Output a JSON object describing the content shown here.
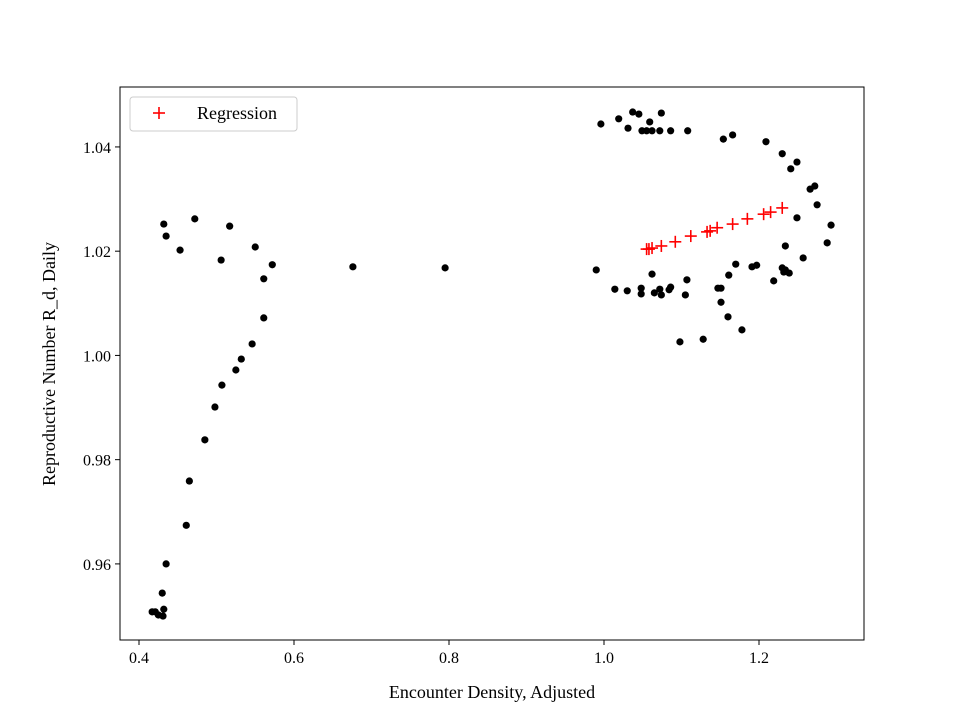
{
  "chart_data": {
    "type": "scatter",
    "title": "",
    "xlabel": "Encounter Density, Adjusted",
    "ylabel": "Reproductive Number R_d, Daily",
    "xlim": [
      0.3755,
      1.3355
    ],
    "ylim": [
      0.9454,
      1.0515
    ],
    "xticks": [
      0.4,
      0.6,
      0.8,
      1.0,
      1.2
    ],
    "xtick_labels": [
      "0.4",
      "0.6",
      "0.8",
      "1.0",
      "1.2"
    ],
    "yticks": [
      0.96,
      0.98,
      1.0,
      1.02,
      1.04
    ],
    "ytick_labels": [
      "0.96",
      "0.98",
      "1.00",
      "1.02",
      "1.04"
    ],
    "grid": false,
    "legend_placement": "top-left",
    "series": [
      {
        "marker": "dot",
        "color": "#000000",
        "points": [
          [
            0.432,
            1.0252
          ],
          [
            0.435,
            1.0229
          ],
          [
            0.453,
            1.0202
          ],
          [
            0.472,
            1.0262
          ],
          [
            0.517,
            1.0248
          ],
          [
            0.506,
            1.0183
          ],
          [
            0.55,
            1.0208
          ],
          [
            0.561,
            1.0147
          ],
          [
            0.572,
            1.0174
          ],
          [
            0.561,
            1.0072
          ],
          [
            0.546,
            1.0022
          ],
          [
            0.532,
            0.9993
          ],
          [
            0.525,
            0.9972
          ],
          [
            0.507,
            0.9943
          ],
          [
            0.498,
            0.9901
          ],
          [
            0.485,
            0.9838
          ],
          [
            0.465,
            0.9759
          ],
          [
            0.461,
            0.9674
          ],
          [
            0.435,
            0.96
          ],
          [
            0.43,
            0.9544
          ],
          [
            0.432,
            0.9513
          ],
          [
            0.421,
            0.9508
          ],
          [
            0.425,
            0.9502
          ],
          [
            0.431,
            0.95
          ],
          [
            0.417,
            0.9508
          ],
          [
            0.676,
            1.017
          ],
          [
            0.795,
            1.0168
          ],
          [
            0.996,
            1.0444
          ],
          [
            1.019,
            1.0454
          ],
          [
            1.037,
            1.0467
          ],
          [
            1.045,
            1.0463
          ],
          [
            1.074,
            1.0465
          ],
          [
            1.059,
            1.0448
          ],
          [
            1.031,
            1.0436
          ],
          [
            1.049,
            1.0431
          ],
          [
            1.055,
            1.0431
          ],
          [
            1.062,
            1.0431
          ],
          [
            1.072,
            1.0431
          ],
          [
            1.086,
            1.0431
          ],
          [
            1.108,
            1.0431
          ],
          [
            1.154,
            1.0415
          ],
          [
            1.166,
            1.0423
          ],
          [
            1.209,
            1.041
          ],
          [
            1.23,
            1.0387
          ],
          [
            1.249,
            1.0371
          ],
          [
            1.241,
            1.0358
          ],
          [
            1.272,
            1.0325
          ],
          [
            1.266,
            1.0319
          ],
          [
            1.275,
            1.0289
          ],
          [
            1.249,
            1.0264
          ],
          [
            1.293,
            1.025
          ],
          [
            1.288,
            1.0216
          ],
          [
            1.234,
            1.021
          ],
          [
            1.257,
            1.0187
          ],
          [
            0.99,
            1.0164
          ],
          [
            1.062,
            1.0156
          ],
          [
            1.014,
            1.0127
          ],
          [
            1.03,
            1.0124
          ],
          [
            1.048,
            1.0129
          ],
          [
            1.048,
            1.0118
          ],
          [
            1.065,
            1.012
          ],
          [
            1.072,
            1.0127
          ],
          [
            1.074,
            1.0116
          ],
          [
            1.084,
            1.0126
          ],
          [
            1.086,
            1.0131
          ],
          [
            1.107,
            1.0145
          ],
          [
            1.105,
            1.0116
          ],
          [
            1.17,
            1.0175
          ],
          [
            1.191,
            1.017
          ],
          [
            1.197,
            1.0173
          ],
          [
            1.161,
            1.0154
          ],
          [
            1.147,
            1.0129
          ],
          [
            1.151,
            1.0129
          ],
          [
            1.151,
            1.0102
          ],
          [
            1.16,
            1.0074
          ],
          [
            1.178,
            1.0049
          ],
          [
            1.128,
            1.0031
          ],
          [
            1.098,
            1.0026
          ],
          [
            1.219,
            1.0143
          ],
          [
            1.23,
            1.0168
          ],
          [
            1.234,
            1.0164
          ],
          [
            1.239,
            1.0158
          ],
          [
            1.232,
            1.016
          ]
        ]
      },
      {
        "name": "Regression",
        "marker": "plus",
        "color": "#ff0000",
        "points": [
          [
            1.055,
            1.0204
          ],
          [
            1.058,
            1.0204
          ],
          [
            1.062,
            1.0206
          ],
          [
            1.074,
            1.021
          ],
          [
            1.092,
            1.0218
          ],
          [
            1.112,
            1.0229
          ],
          [
            1.133,
            1.0237
          ],
          [
            1.137,
            1.0239
          ],
          [
            1.146,
            1.0245
          ],
          [
            1.166,
            1.0252
          ],
          [
            1.185,
            1.0262
          ],
          [
            1.206,
            1.0271
          ],
          [
            1.215,
            1.0275
          ],
          [
            1.23,
            1.0283
          ]
        ]
      }
    ]
  }
}
